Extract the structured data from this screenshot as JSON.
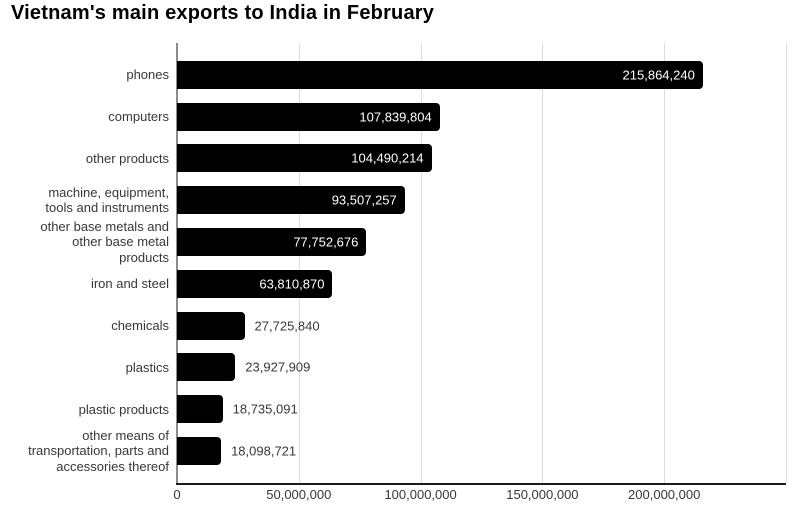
{
  "title": "Vietnam's main exports to India in February",
  "colors": {
    "bar": "#000000",
    "grid": "#dddddd",
    "axis_y": "#8c8c8c",
    "axis_x": "#1c1c1c",
    "text": "#383838",
    "value_inside": "#ffffff",
    "background": "#ffffff"
  },
  "chart_data": {
    "type": "bar",
    "orientation": "horizontal",
    "title": "Vietnam's main exports to India in February",
    "categories": [
      "phones",
      "computers",
      "other products",
      "machine, equipment, tools and instruments",
      "other base metals and other base metal products",
      "iron and steel",
      "chemicals",
      "plastics",
      "plastic products",
      "other means of transportation, parts and accessories thereof"
    ],
    "categories_display": [
      "phones",
      "computers",
      "other products",
      "machine, equipment,\ntools and instruments",
      "other base metals and\nother base metal\nproducts",
      "iron and steel",
      "chemicals",
      "plastics",
      "plastic products",
      "other means of\ntransportation, parts and\naccessories thereof"
    ],
    "values": [
      215864240,
      107839804,
      104490214,
      93507257,
      77752676,
      63810870,
      27725840,
      23927909,
      18735091,
      18098721
    ],
    "value_labels": [
      "215,864,240",
      "107,839,804",
      "104,490,214",
      "93,507,257",
      "77,752,676",
      "63,810,870",
      "27,725,840",
      "23,927,909",
      "18,735,091",
      "18,098,721"
    ],
    "xlabel": "",
    "ylabel": "",
    "xlim": [
      0,
      250000000
    ],
    "x_tick_values": [
      0,
      50000000,
      100000000,
      150000000,
      200000000
    ],
    "x_ticks": [
      "0",
      "50,000,000",
      "100,000,000",
      "150,000,000",
      "200,000,000"
    ],
    "gridline_values": [
      50000000,
      100000000,
      150000000,
      200000000,
      250000000
    ],
    "grid": true,
    "legend": "none",
    "bar_color": "#000000"
  }
}
